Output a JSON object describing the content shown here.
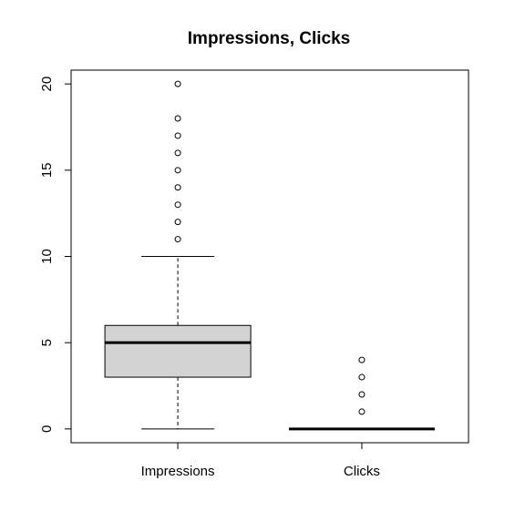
{
  "chart_data": {
    "type": "boxplot",
    "title": "Impressions, Clicks",
    "xlabel": "",
    "ylabel": "",
    "ylim": [
      -0.8,
      20.8
    ],
    "yticks": [
      0,
      5,
      10,
      15,
      20
    ],
    "grid": false,
    "box_fill": "#d3d3d3",
    "categories": [
      "Impressions",
      "Clicks"
    ],
    "boxes": [
      {
        "name": "Impressions",
        "whisker_low": 0,
        "q1": 3,
        "median": 5,
        "q3": 6,
        "whisker_high": 10,
        "outliers": [
          11,
          12,
          13,
          14,
          15,
          16,
          17,
          18,
          20
        ]
      },
      {
        "name": "Clicks",
        "whisker_low": 0,
        "q1": 0,
        "median": 0,
        "q3": 0,
        "whisker_high": 0,
        "outliers": [
          1,
          2,
          3,
          4
        ]
      }
    ]
  }
}
